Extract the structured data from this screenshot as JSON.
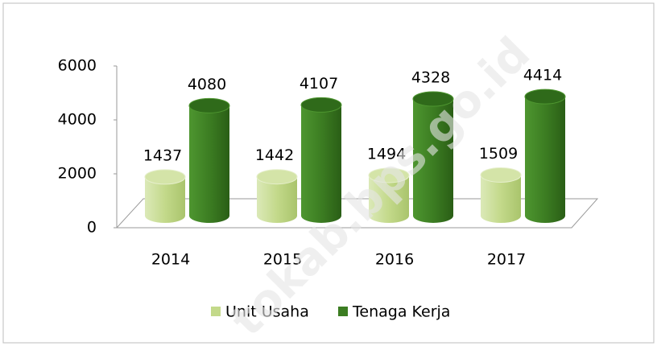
{
  "chart_data": {
    "type": "bar",
    "categories": [
      "2014",
      "2015",
      "2016",
      "2017"
    ],
    "series": [
      {
        "name": "Unit Usaha",
        "color": "#c3d98a",
        "values": [
          1437,
          1442,
          1494,
          1509
        ]
      },
      {
        "name": "Tenaga Kerja",
        "color": "#3c7d22",
        "values": [
          4080,
          4107,
          4328,
          4414
        ]
      }
    ],
    "ylim": [
      0,
      6000
    ],
    "yticks": [
      0,
      2000,
      4000,
      6000
    ],
    "grid": false,
    "legend": "bottom",
    "watermark": "tokab.bps.go.id"
  }
}
